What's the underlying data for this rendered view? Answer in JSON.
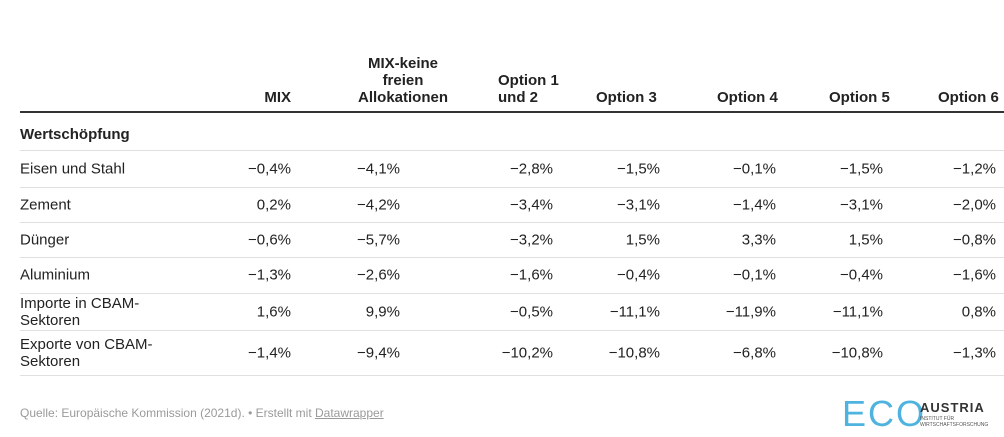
{
  "table": {
    "header": [
      "MIX",
      "MIX-keine freien Allokationen",
      "Option 1 und 2",
      "Option 3",
      "Option 4",
      "Option 5",
      "Option 6"
    ],
    "section": "Wertschöpfung",
    "rows": [
      {
        "label": "Eisen und Stahl",
        "cells": [
          "−0,4%",
          "−4,1%",
          "−2,8%",
          "−1,5%",
          "−0,1%",
          "−1,5%",
          "−1,2%"
        ]
      },
      {
        "label": "Zement",
        "cells": [
          "0,2%",
          "−4,2%",
          "−3,4%",
          "−3,1%",
          "−1,4%",
          "−3,1%",
          "−2,0%"
        ]
      },
      {
        "label": "Dünger",
        "cells": [
          "−0,6%",
          "−5,7%",
          "−3,2%",
          "1,5%",
          "3,3%",
          "1,5%",
          "−0,8%"
        ]
      },
      {
        "label": "Aluminium",
        "cells": [
          "−1,3%",
          "−2,6%",
          "−1,6%",
          "−0,4%",
          "−0,1%",
          "−0,4%",
          "−1,6%"
        ]
      },
      {
        "label": "Importe in CBAM-Sektoren",
        "cells": [
          "1,6%",
          "9,9%",
          "−0,5%",
          "−11,1%",
          "−11,9%",
          "−11,1%",
          "0,8%"
        ]
      },
      {
        "label": "Exporte von CBAM-Sektoren",
        "cells": [
          "−1,4%",
          "−9,4%",
          "−10,2%",
          "−10,8%",
          "−6,8%",
          "−10,8%",
          "−1,3%"
        ]
      }
    ]
  },
  "footer": {
    "source": "Quelle: Europäische Kommission (2021d). • Erstellt mit ",
    "link": "Datawrapper"
  },
  "logo": {
    "mark": "ECO",
    "name": "AUSTRIA",
    "tagline": "INSTITUT FÜR WIRTSCHAFTSFORSCHUNG"
  }
}
